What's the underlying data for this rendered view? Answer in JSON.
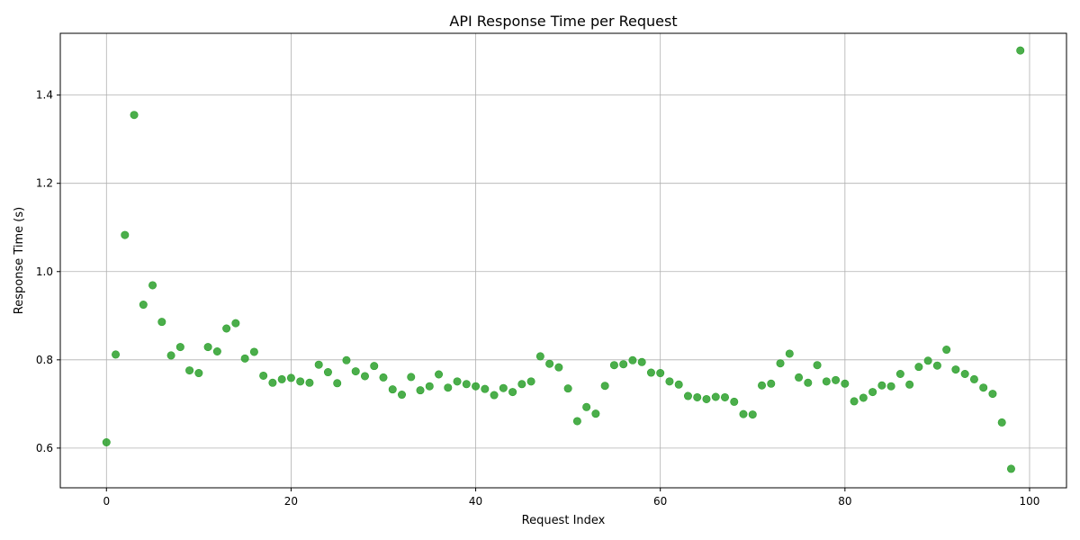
{
  "chart_data": {
    "type": "scatter",
    "title": "API Response Time per Request",
    "xlabel": "Request Index",
    "ylabel": "Response Time (s)",
    "xlim": [
      -5,
      104
    ],
    "ylim": [
      0.51,
      1.54
    ],
    "xticks": [
      0,
      20,
      40,
      60,
      80,
      100
    ],
    "yticks": [
      0.6,
      0.8,
      1.0,
      1.2,
      1.4
    ],
    "xtick_labels": [
      "0",
      "20",
      "40",
      "60",
      "80",
      "100"
    ],
    "ytick_labels": [
      "0.6",
      "0.8",
      "1.0",
      "1.2",
      "1.4"
    ],
    "grid": true,
    "color": "#2ca02c",
    "x": [
      0,
      1,
      2,
      3,
      4,
      5,
      6,
      7,
      8,
      9,
      10,
      11,
      12,
      13,
      14,
      15,
      16,
      17,
      18,
      19,
      20,
      21,
      22,
      23,
      24,
      25,
      26,
      27,
      28,
      29,
      30,
      31,
      32,
      33,
      34,
      35,
      36,
      37,
      38,
      39,
      40,
      41,
      42,
      43,
      44,
      45,
      46,
      47,
      48,
      49,
      50,
      51,
      52,
      53,
      54,
      55,
      56,
      57,
      58,
      59,
      60,
      61,
      62,
      63,
      64,
      65,
      66,
      67,
      68,
      69,
      70,
      71,
      72,
      73,
      74,
      75,
      76,
      77,
      78,
      79,
      80,
      81,
      82,
      83,
      84,
      85,
      86,
      87,
      88,
      89,
      90,
      91,
      92,
      93,
      94,
      95,
      96,
      97,
      98,
      99
    ],
    "y": [
      0.613,
      0.812,
      1.083,
      1.355,
      0.925,
      0.969,
      0.886,
      0.81,
      0.829,
      0.776,
      0.77,
      0.829,
      0.819,
      0.871,
      0.883,
      0.803,
      0.818,
      0.764,
      0.748,
      0.756,
      0.759,
      0.751,
      0.748,
      0.789,
      0.772,
      0.747,
      0.799,
      0.774,
      0.763,
      0.786,
      0.76,
      0.733,
      0.721,
      0.761,
      0.731,
      0.74,
      0.767,
      0.737,
      0.751,
      0.745,
      0.74,
      0.734,
      0.72,
      0.736,
      0.727,
      0.745,
      0.751,
      0.808,
      0.791,
      0.783,
      0.735,
      0.661,
      0.693,
      0.678,
      0.741,
      0.788,
      0.79,
      0.799,
      0.795,
      0.771,
      0.77,
      0.751,
      0.744,
      0.718,
      0.715,
      0.711,
      0.716,
      0.715,
      0.705,
      0.677,
      0.676,
      0.742,
      0.746,
      0.792,
      0.814,
      0.76,
      0.748,
      0.788,
      0.751,
      0.754,
      0.746,
      0.706,
      0.714,
      0.727,
      0.742,
      0.74,
      0.768,
      0.744,
      0.784,
      0.798,
      0.787,
      0.823,
      0.778,
      0.768,
      0.756,
      0.737,
      0.723,
      0.658,
      0.553,
      1.501
    ]
  }
}
